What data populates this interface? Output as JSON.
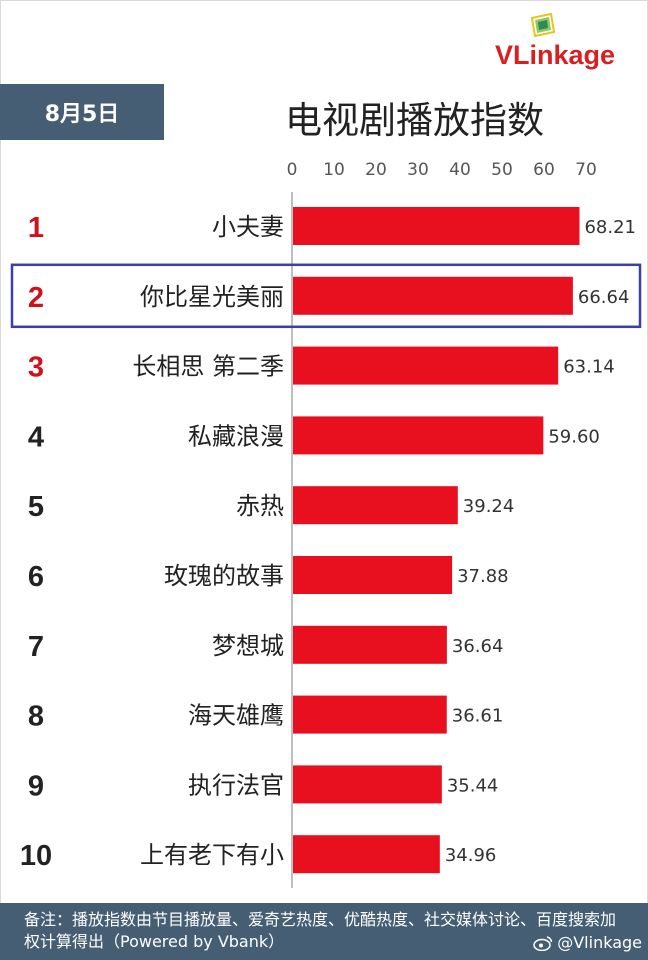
{
  "brand": {
    "name": "VLinkage"
  },
  "date_badge": "8月5日",
  "chart_data": {
    "type": "bar",
    "title": "电视剧播放指数",
    "orientation": "horizontal",
    "ranks": [
      "1",
      "2",
      "3",
      "4",
      "5",
      "6",
      "7",
      "8",
      "9",
      "10"
    ],
    "categories": [
      "小夫妻",
      "你比星光美丽",
      "长相思 第二季",
      "私藏浪漫",
      "赤热",
      "玫瑰的故事",
      "梦想城",
      "海天雄鹰",
      "执行法官",
      "上有老下有小"
    ],
    "values": [
      68.21,
      66.64,
      63.14,
      59.6,
      39.24,
      37.88,
      36.64,
      36.61,
      35.44,
      34.96
    ],
    "value_labels": [
      "68.21",
      "66.64",
      "63.14",
      "59.60",
      "39.24",
      "37.88",
      "36.64",
      "36.61",
      "35.44",
      "34.96"
    ],
    "xticks": [
      "0",
      "10",
      "20",
      "30",
      "40",
      "50",
      "60",
      "70"
    ],
    "xlim": [
      0,
      70
    ],
    "highlighted_index": 1,
    "grid": false,
    "legend": "none",
    "colors": {
      "bar": "#e8101e",
      "rank_top3": "#d0111c",
      "rank_other": "#222222",
      "highlight_box": "#3b3fa8"
    }
  },
  "footer": {
    "note": "备注：播放指数由节目播放量、爱奇艺热度、优酷热度、社交媒体讨论、百度搜索加权计算得出（Powered by Vbank）",
    "weibo_handle": "@Vlinkage"
  }
}
